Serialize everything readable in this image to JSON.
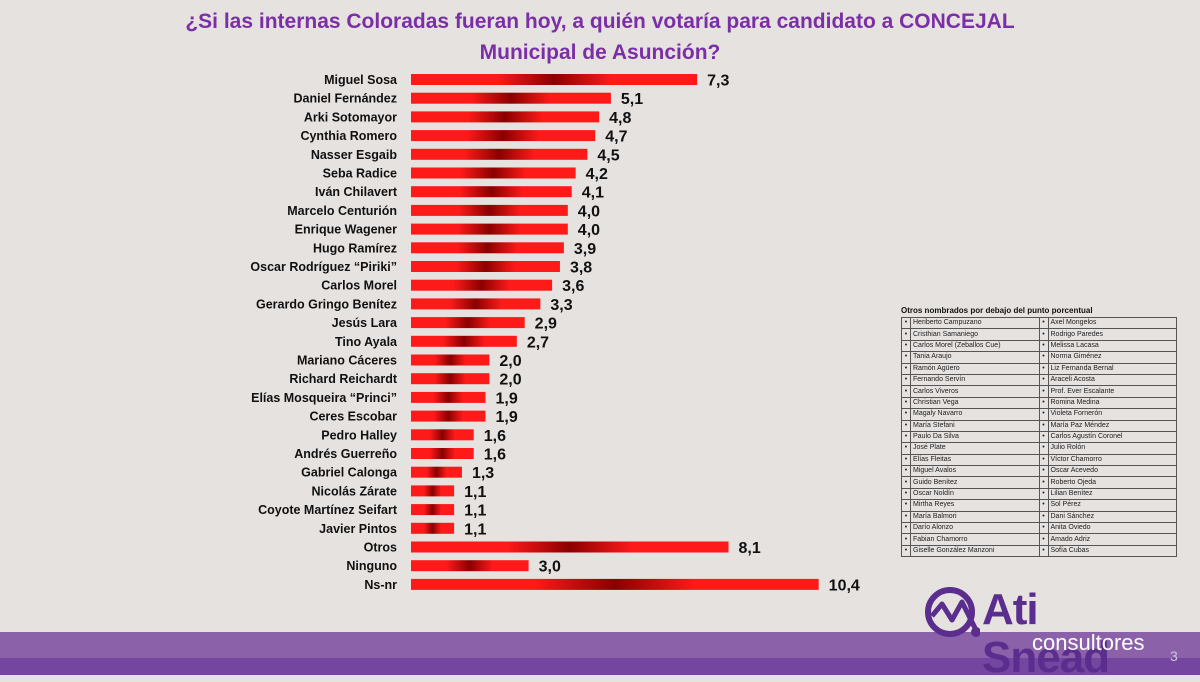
{
  "title": "¿Si las internas Coloradas fueran hoy, a quién votaría para candidato a CONCEJAL Municipal de Asunción?",
  "chart_data": {
    "type": "bar",
    "orientation": "horizontal",
    "title": "¿Si las internas Coloradas fueran hoy, a quién votaría para candidato a CONCEJAL Municipal de Asunción?",
    "categories": [
      "Miguel Sosa",
      "Daniel Fernández",
      "Arki Sotomayor",
      "Cynthia Romero",
      "Nasser Esgaib",
      "Seba Radice",
      "Iván Chilavert",
      "Marcelo Centurión",
      "Enrique Wagener",
      "Hugo Ramírez",
      "Oscar Rodríguez “Piriki”",
      "Carlos Morel",
      "Gerardo Gringo Benítez",
      "Jesús Lara",
      "Tino Ayala",
      "Mariano Cáceres",
      "Richard Reichardt",
      "Elías Mosqueira “Princi”",
      "Ceres Escobar",
      "Pedro Halley",
      "Andrés Guerreño",
      "Gabriel Calonga",
      "Nicolás Zárate",
      "Coyote Martínez Seifart",
      "Javier Pintos",
      "Otros",
      "Ninguno",
      "Ns-nr"
    ],
    "values": [
      7.3,
      5.1,
      4.8,
      4.7,
      4.5,
      4.2,
      4.1,
      4.0,
      4.0,
      3.9,
      3.8,
      3.6,
      3.3,
      2.9,
      2.7,
      2.0,
      2.0,
      1.9,
      1.9,
      1.6,
      1.6,
      1.3,
      1.1,
      1.1,
      1.1,
      8.1,
      3.0,
      10.4
    ],
    "value_labels": [
      "7,3",
      "5,1",
      "4,8",
      "4,7",
      "4,5",
      "4,2",
      "4,1",
      "4,0",
      "4,0",
      "3,9",
      "3,8",
      "3,6",
      "3,3",
      "2,9",
      "2,7",
      "2,0",
      "2,0",
      "1,9",
      "1,9",
      "1,6",
      "1,6",
      "1,3",
      "1,1",
      "1,1",
      "1,1",
      "8,1",
      "3,0",
      "10,4"
    ],
    "xlim": [
      0,
      10.4
    ],
    "grid": false,
    "colors": {
      "bar_light": "#ff1a1a",
      "bar_dark": "#8b0000"
    }
  },
  "others_box": {
    "title": "Otros nombrados por debajo del punto porcentual",
    "bullet": "•",
    "left": [
      "Heriberto Campuzano",
      "Cristhian Samaniego",
      "Carlos Morel (Zeballos Cue)",
      "Tania Araujo",
      "Ramón Agüero",
      "Fernando Servín",
      "Carlos Viveros",
      "Christian Vega",
      "Magaly Navarro",
      "María Stefani",
      "Paulo Da Silva",
      "José Plate",
      "Elías Fleitas",
      "Miguel Avalos",
      "Guido Benítez",
      "Oscar Noldín",
      "Mirtha Reyes",
      "María Balmori",
      "Darío Alonzo",
      "Fabian Chamorro",
      "Giselle González Manzoni"
    ],
    "right": [
      "Axel Mongelos",
      "Rodrigo Paredes",
      "Melissa Lacasa",
      "Norma Giménez",
      "Liz Fernanda Bernal",
      "Araceli Acosta",
      "Prof. Ever Escalante",
      "Romina Medina",
      "Violeta Fornerón",
      "María Paz Méndez",
      "Carlos Agustín Coronel",
      "Julio Rolón",
      "Víctor Chamorro",
      "Oscar Acevedo",
      "Roberto Ojeda",
      "Lilian Benítez",
      "Sol Pérez",
      "Dani Sánchez",
      "Anita Oviedo",
      "Amado Adriz",
      "Sofía Cubas"
    ]
  },
  "logo": {
    "main": "Ati Snead",
    "sub": "consultores"
  },
  "page_number": "3",
  "colors": {
    "accent": "#7b2fa6",
    "footer": "#8b62aa",
    "footer_dark": "#7446a0"
  }
}
